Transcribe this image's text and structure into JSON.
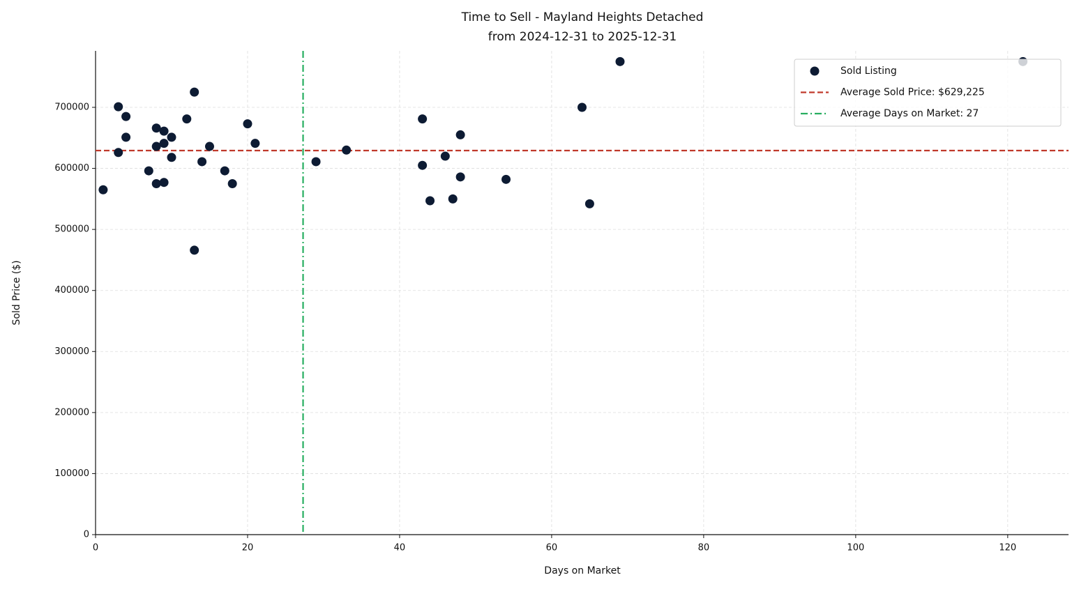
{
  "chart_data": {
    "type": "scatter",
    "title": "Time to Sell - Mayland Heights Detached",
    "subtitle": "from 2024-12-31 to 2025-12-31",
    "x_label": "Days on Market",
    "y_label": "Sold Price ($)",
    "xlim": [
      0,
      128
    ],
    "ylim": [
      0,
      792500
    ],
    "xticks": [
      0,
      20,
      40,
      60,
      80,
      100,
      120
    ],
    "yticks": [
      0,
      100000,
      200000,
      300000,
      400000,
      500000,
      600000,
      700000
    ],
    "grid": true,
    "legend": "upper right",
    "series": [
      {
        "name": "Sold Listing",
        "color": "#0d1b33",
        "x": [
          1,
          3,
          3,
          4,
          4,
          7,
          8,
          8,
          8,
          9,
          9,
          9,
          10,
          10,
          12,
          13,
          13,
          14,
          15,
          17,
          18,
          20,
          21,
          29,
          33,
          43,
          43,
          44,
          46,
          47,
          48,
          48,
          54,
          64,
          65,
          69,
          122
        ],
        "values": [
          565000,
          701000,
          626000,
          685000,
          651000,
          596000,
          666000,
          636000,
          575000,
          661000,
          641000,
          577000,
          651000,
          618000,
          681000,
          725000,
          466000,
          611000,
          636000,
          596000,
          575000,
          673000,
          641000,
          611000,
          630000,
          681000,
          605000,
          547000,
          620000,
          550000,
          655000,
          586000,
          582000,
          700000,
          542000,
          775000,
          775000
        ]
      }
    ],
    "reference_lines": [
      {
        "name": "Average Sold Price: $629,225",
        "axis": "y",
        "value": 629225,
        "color": "#c0392b",
        "dash": "dashed"
      },
      {
        "name": "Average Days on Market: 27",
        "axis": "x",
        "value": 27.3,
        "color": "#27ae60",
        "dash": "dashdot"
      }
    ]
  }
}
